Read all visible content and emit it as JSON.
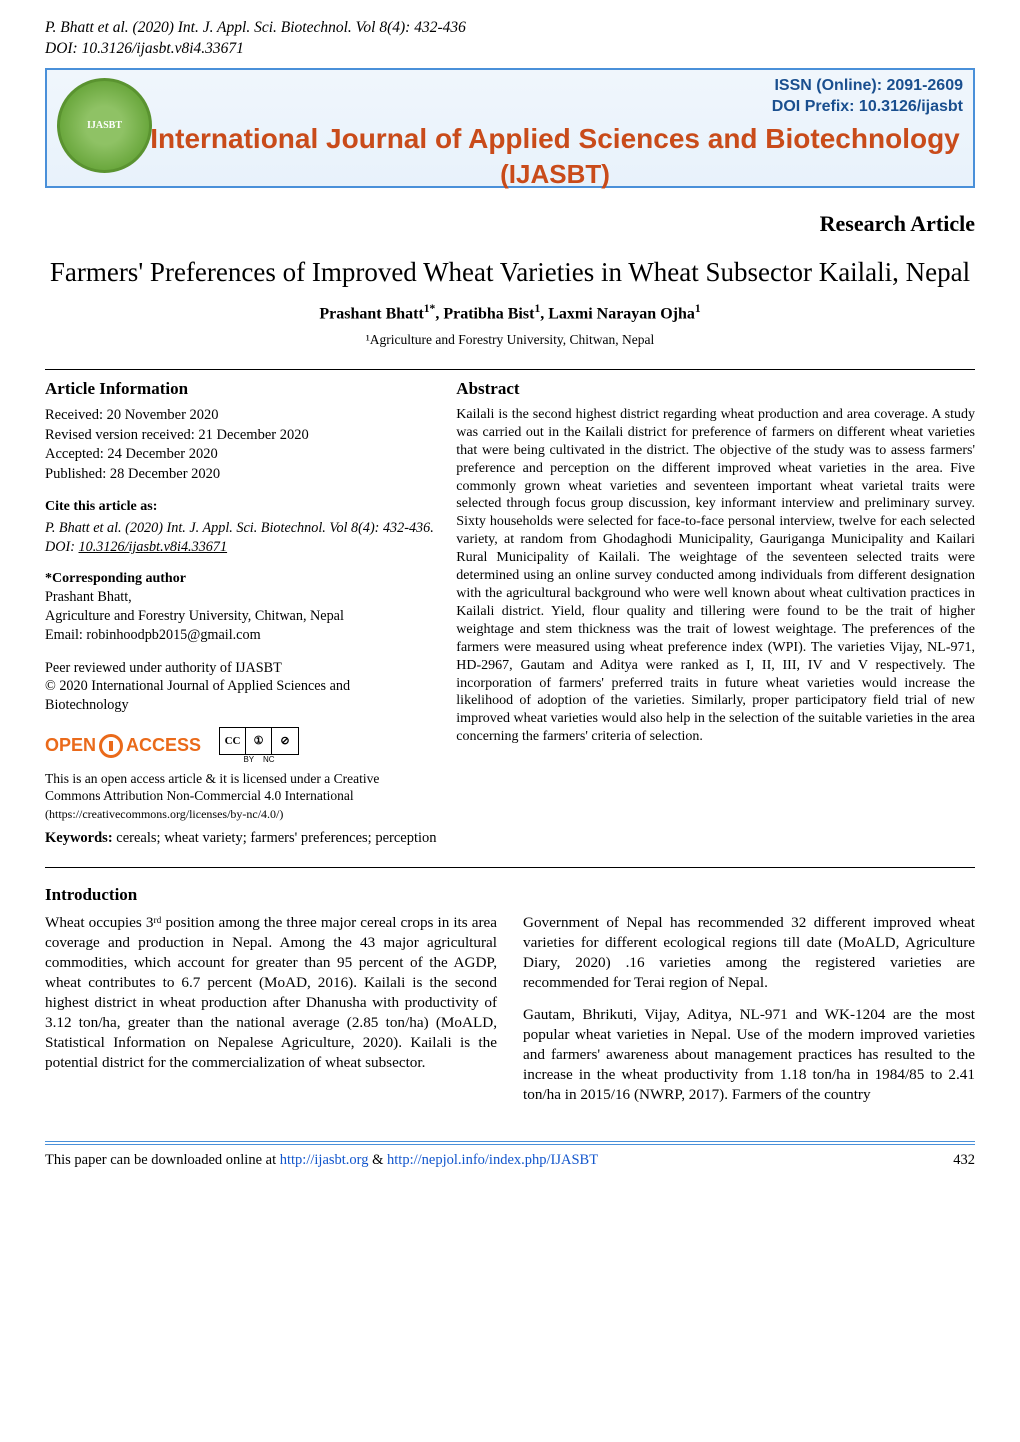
{
  "running_head": {
    "citation": "P. Bhatt et al. (2020) Int. J. Appl. Sci. Biotechnol. Vol 8(4): 432-436",
    "doi": "DOI: 10.3126/ijasbt.v8i4.33671"
  },
  "banner": {
    "issn": "ISSN (Online): 2091-2609",
    "doi_prefix": "DOI Prefix: 10.3126/ijasbt",
    "journal_line1": "International Journal of Applied Sciences and Biotechnology",
    "journal_line2": "(IJASBT)",
    "logo_label": "IJASBT"
  },
  "article_type": "Research Article",
  "title": "Farmers' Preferences of Improved Wheat Varieties in Wheat Subsector Kailali, Nepal",
  "authors_html": "Prashant Bhatt<sup>1*</sup>, Pratibha Bist<sup>1</sup>, Laxmi Narayan Ojha<sup>1</sup>",
  "affiliation": "¹Agriculture and Forestry University, Chitwan, Nepal",
  "article_info": {
    "heading": "Article Information",
    "received": "Received: 20 November 2020",
    "revised": "Revised version received: 21 December 2020",
    "accepted": "Accepted: 24 December 2020",
    "published": "Published: 28 December 2020"
  },
  "cite": {
    "heading": "Cite this article as:",
    "body_prefix": "P. Bhatt et al. (2020) Int. J. Appl. Sci. Biotechnol. Vol 8(4): 432-436. DOI: ",
    "doi": "10.3126/ijasbt.v8i4.33671"
  },
  "corresponding": {
    "heading": "*Corresponding author",
    "name": "Prashant Bhatt,",
    "affil": "Agriculture and Forestry University, Chitwan, Nepal",
    "email": "Email: robinhoodpb2015@gmail.com"
  },
  "peer": {
    "line1": "Peer reviewed under authority of IJASBT",
    "line2": "© 2020 International Journal of Applied Sciences and Biotechnology"
  },
  "oa": {
    "open": "OPEN",
    "access": "ACCESS",
    "cc": "CC",
    "by": "BY",
    "nc": "NC",
    "license_text": "This is an open access article & it is licensed under a Creative Commons Attribution Non-Commercial 4.0 International",
    "license_url": "(https://creativecommons.org/licenses/by-nc/4.0/)"
  },
  "keywords": {
    "label": "Keywords:",
    "text": " cereals; wheat variety; farmers' preferences; perception"
  },
  "abstract": {
    "heading": "Abstract",
    "text": "Kailali is the second highest district regarding wheat production and area coverage. A study was carried out in the Kailali district for preference of farmers on different wheat varieties that were being cultivated in the district. The objective of the study was to assess farmers' preference and perception on the different improved wheat varieties in the area. Five commonly grown wheat varieties and seventeen important wheat varietal traits were selected through focus group discussion, key informant interview and preliminary survey. Sixty households were selected for face-to-face personal interview, twelve for each selected variety, at random from Ghodaghodi Municipality, Gauriganga Municipality and Kailari Rural Municipality of Kailali. The weightage of the seventeen selected traits were determined using an online survey conducted among individuals from different designation with the agricultural background who were well known about wheat cultivation practices in Kailali district. Yield, flour quality and tillering were found to be the trait of higher weightage and stem thickness was the trait of lowest weightage. The preferences of the farmers were measured using wheat preference index (WPI). The varieties Vijay, NL-971, HD-2967, Gautam and Aditya were ranked as I, II, III, IV and V respectively. The incorporation of farmers' preferred traits in future wheat varieties would increase the likelihood of adoption of the varieties. Similarly, proper participatory field trial of new improved wheat varieties would also help in the selection of the suitable varieties in the area concerning the farmers' criteria of selection."
  },
  "introduction": {
    "heading": "Introduction",
    "col1_p1": "Wheat occupies 3ʳᵈ position among the three major cereal crops in its area coverage and production in Nepal. Among the 43 major agricultural commodities, which account for greater than 95 percent of the AGDP, wheat contributes to 6.7 percent (MoAD, 2016). Kailali is the second highest district in wheat production after Dhanusha with productivity of 3.12 ton/ha, greater than the national average (2.85 ton/ha) (MoALD, Statistical Information on Nepalese Agriculture, 2020). Kailali is the potential district for the commercialization of wheat subsector.",
    "col2_p1": "Government of Nepal has recommended 32 different improved wheat varieties for different ecological regions till date (MoALD, Agriculture Diary, 2020) .16 varieties among the registered varieties are recommended for Terai region of Nepal.",
    "col2_p2": "Gautam, Bhrikuti, Vijay, Aditya, NL-971 and WK-1204 are the most popular wheat varieties in Nepal. Use of the modern improved varieties and farmers' awareness about management practices has resulted to the increase in the wheat productivity from 1.18 ton/ha in 1984/85 to 2.41 ton/ha in 2015/16 (NWRP, 2017). Farmers of the country"
  },
  "footer": {
    "text_prefix": "This paper can be downloaded online at ",
    "link1": "http://ijasbt.org",
    "amp": " & ",
    "link2": "http://nepjol.info/index.php/IJASBT",
    "page": "432"
  },
  "colors": {
    "banner_border": "#4a90d9",
    "banner_text": "#c94b1a",
    "issn_text": "#1a4f8f",
    "oa_orange": "#ea6a1a",
    "link_blue": "#1155cc"
  }
}
